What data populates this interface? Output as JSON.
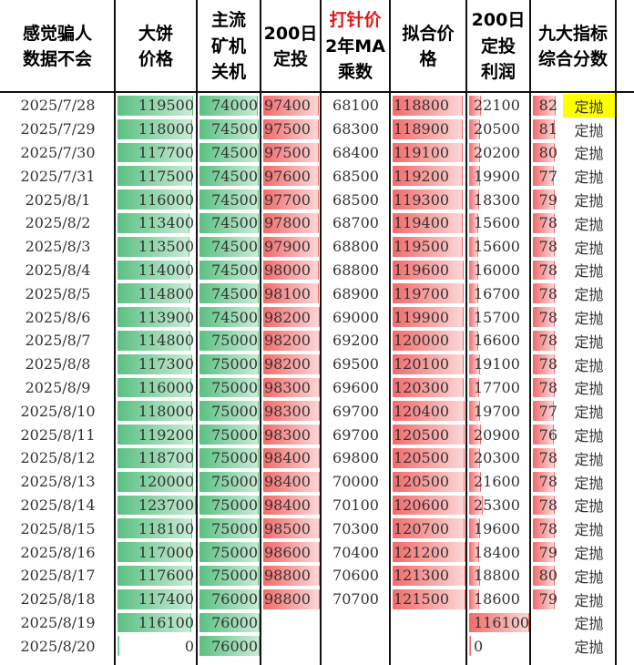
{
  "headers": [
    {
      "key": "c1",
      "text": "感觉骗人\n数据不会",
      "color": "black"
    },
    {
      "key": "c2",
      "text": "大饼\n价格",
      "color": "black"
    },
    {
      "key": "c3",
      "text": "主流\n矿机\n关机",
      "color": "black"
    },
    {
      "key": "c4",
      "text": "200日\n定投",
      "color": "black"
    },
    {
      "key": "c5",
      "text": "打针价",
      "color": "red",
      "extra": "2年MA\n乘数"
    },
    {
      "key": "c6",
      "text": "拟合价\n格",
      "color": "black"
    },
    {
      "key": "c7",
      "text": "200日\n定投\n利润",
      "color": "black"
    },
    {
      "key": "c8",
      "text": "九大指标\n综合分数",
      "color": "black"
    }
  ],
  "rows": [
    {
      "date": "2025/7/28",
      "btc": "119500",
      "miner": "74000",
      "dca": "97400",
      "ma": "68100",
      "fit": "118800",
      "profit": "22100",
      "score": "82",
      "signal": "定抛",
      "signal_highlight": true
    },
    {
      "date": "2025/7/29",
      "btc": "118000",
      "miner": "74500",
      "dca": "97500",
      "ma": "68300",
      "fit": "118900",
      "profit": "20500",
      "score": "81",
      "signal": "定抛"
    },
    {
      "date": "2025/7/30",
      "btc": "117700",
      "miner": "74500",
      "dca": "97500",
      "ma": "68400",
      "fit": "119100",
      "profit": "20200",
      "score": "80",
      "signal": "定抛"
    },
    {
      "date": "2025/7/31",
      "btc": "117500",
      "miner": "74500",
      "dca": "97600",
      "ma": "68500",
      "fit": "119200",
      "profit": "19900",
      "score": "77",
      "signal": "定抛"
    },
    {
      "date": "2025/8/1",
      "btc": "116000",
      "miner": "74500",
      "dca": "97700",
      "ma": "68500",
      "fit": "119300",
      "profit": "18300",
      "score": "79",
      "signal": "定抛"
    },
    {
      "date": "2025/8/2",
      "btc": "113400",
      "miner": "74500",
      "dca": "97800",
      "ma": "68700",
      "fit": "119400",
      "profit": "15600",
      "score": "78",
      "signal": "定抛"
    },
    {
      "date": "2025/8/3",
      "btc": "113500",
      "miner": "74500",
      "dca": "97900",
      "ma": "68800",
      "fit": "119500",
      "profit": "15600",
      "score": "78",
      "signal": "定抛"
    },
    {
      "date": "2025/8/4",
      "btc": "114000",
      "miner": "74500",
      "dca": "98000",
      "ma": "68800",
      "fit": "119600",
      "profit": "16000",
      "score": "78",
      "signal": "定抛"
    },
    {
      "date": "2025/8/5",
      "btc": "114800",
      "miner": "74500",
      "dca": "98100",
      "ma": "68900",
      "fit": "119700",
      "profit": "16700",
      "score": "78",
      "signal": "定抛"
    },
    {
      "date": "2025/8/6",
      "btc": "113900",
      "miner": "74500",
      "dca": "98200",
      "ma": "69000",
      "fit": "119900",
      "profit": "15700",
      "score": "78",
      "signal": "定抛"
    },
    {
      "date": "2025/8/7",
      "btc": "114800",
      "miner": "75000",
      "dca": "98200",
      "ma": "69200",
      "fit": "120000",
      "profit": "16600",
      "score": "78",
      "signal": "定抛"
    },
    {
      "date": "2025/8/8",
      "btc": "117300",
      "miner": "75000",
      "dca": "98200",
      "ma": "69500",
      "fit": "120100",
      "profit": "19100",
      "score": "78",
      "signal": "定抛"
    },
    {
      "date": "2025/8/9",
      "btc": "116000",
      "miner": "75000",
      "dca": "98300",
      "ma": "69600",
      "fit": "120300",
      "profit": "17700",
      "score": "78",
      "signal": "定抛"
    },
    {
      "date": "2025/8/10",
      "btc": "118000",
      "miner": "75000",
      "dca": "98300",
      "ma": "69700",
      "fit": "120400",
      "profit": "19700",
      "score": "77",
      "signal": "定抛"
    },
    {
      "date": "2025/8/11",
      "btc": "119200",
      "miner": "75000",
      "dca": "98300",
      "ma": "69700",
      "fit": "120500",
      "profit": "20900",
      "score": "76",
      "signal": "定抛"
    },
    {
      "date": "2025/8/12",
      "btc": "118700",
      "miner": "75000",
      "dca": "98400",
      "ma": "69800",
      "fit": "120500",
      "profit": "20300",
      "score": "78",
      "signal": "定抛"
    },
    {
      "date": "2025/8/13",
      "btc": "120000",
      "miner": "75000",
      "dca": "98400",
      "ma": "70000",
      "fit": "120500",
      "profit": "21600",
      "score": "78",
      "signal": "定抛"
    },
    {
      "date": "2025/8/14",
      "btc": "123700",
      "miner": "75000",
      "dca": "98400",
      "ma": "70100",
      "fit": "120600",
      "profit": "25300",
      "score": "78",
      "signal": "定抛"
    },
    {
      "date": "2025/8/15",
      "btc": "118100",
      "miner": "75000",
      "dca": "98500",
      "ma": "70300",
      "fit": "120700",
      "profit": "19600",
      "score": "78",
      "signal": "定抛"
    },
    {
      "date": "2025/8/16",
      "btc": "117000",
      "miner": "75000",
      "dca": "98600",
      "ma": "70400",
      "fit": "121200",
      "profit": "18400",
      "score": "79",
      "signal": "定抛"
    },
    {
      "date": "2025/8/17",
      "btc": "117600",
      "miner": "75000",
      "dca": "98800",
      "ma": "70600",
      "fit": "121300",
      "profit": "18800",
      "score": "80",
      "signal": "定抛"
    },
    {
      "date": "2025/8/18",
      "btc": "117400",
      "miner": "76000",
      "dca": "98800",
      "ma": "70700",
      "fit": "121500",
      "profit": "18600",
      "score": "79",
      "signal": "定抛"
    },
    {
      "date": "2025/8/19",
      "btc": "116100",
      "miner": "76000",
      "dca": "",
      "ma": "",
      "fit": "",
      "profit": "116100",
      "score": "",
      "signal": "定抛"
    },
    {
      "date": "2025/8/20",
      "btc": "0",
      "miner": "76000",
      "dca": "",
      "ma": "",
      "fit": "",
      "profit": "0",
      "score": "",
      "signal": "定抛"
    }
  ],
  "colors": {
    "green": "#5bc082",
    "red": "#f26b6b",
    "highlight": "#ffff00",
    "red_header": "#e01818"
  }
}
